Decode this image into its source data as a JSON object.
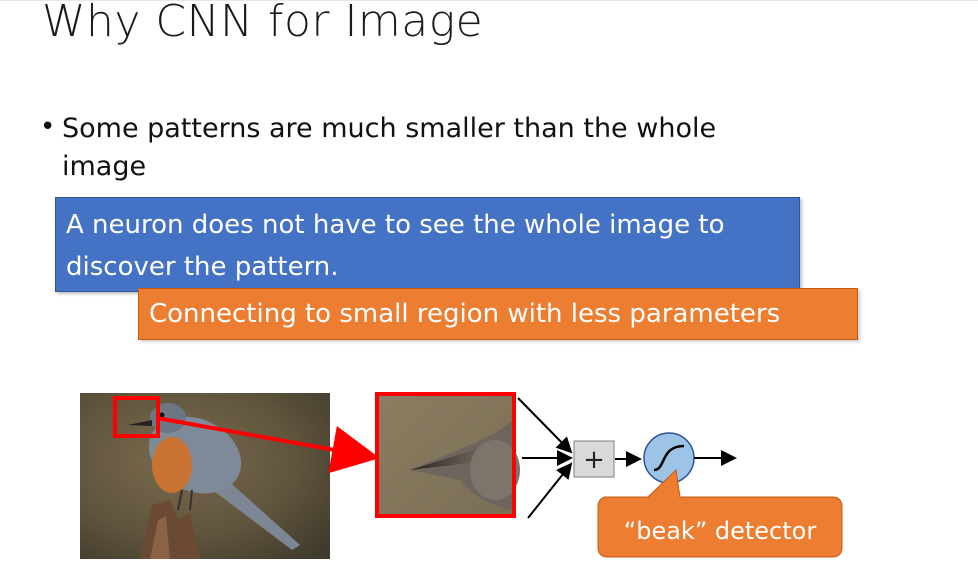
{
  "slide": {
    "title": "Why CNN for Image",
    "bullet": "Some patterns are much smaller than the whole image",
    "blue_box_text": "A neuron does not have to see the whole image to discover the pattern.",
    "orange_box_text": "Connecting to small region with less parameters",
    "plus_symbol": "+",
    "callout_text": "“beak” detector"
  },
  "colors": {
    "blue_box": "#4472c4",
    "orange_box": "#ed7d31",
    "highlight_red": "#ff0000",
    "neuron_fill": "#9dc3e6"
  }
}
